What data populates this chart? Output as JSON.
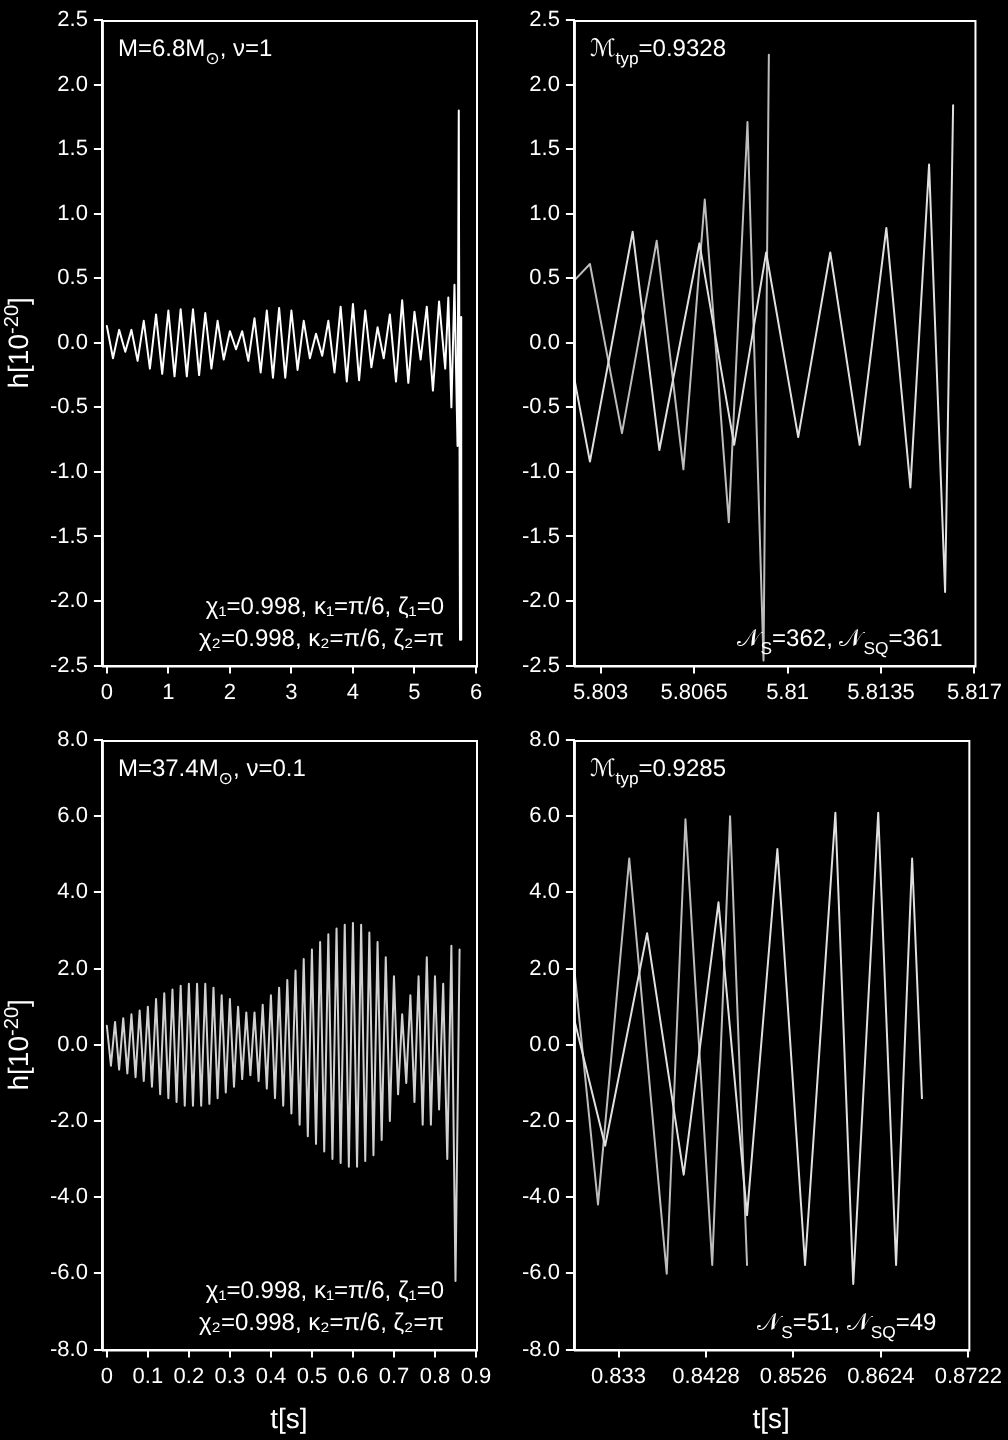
{
  "chart_data": [
    {
      "type": "line",
      "ylabel": "h[10$^{-20}$]",
      "marker": "none",
      "grid": false,
      "xlim": [
        -0.08,
        6
      ],
      "xticks": [
        0,
        1,
        2,
        3,
        4,
        5,
        6
      ],
      "ylim": [
        -2.5,
        2.5
      ],
      "yticks": [
        -2.5,
        {
          "value": -2,
          "label": "-2.0"
        },
        -1.5,
        {
          "value": -1,
          "label": "-1.0"
        },
        -0.5,
        {
          "value": 0,
          "label": "0.0"
        },
        0.5,
        {
          "value": 1,
          "label": "1.0"
        },
        1.5,
        {
          "value": 2,
          "label": "2.0"
        },
        2.5
      ],
      "annotations": [
        "M=6.8M$_{⊙}$, ν=1",
        "χ₁=0.998, κ₁=π/6, ζ₁=0",
        "χ₂=0.998, κ₂=π/6, ζ₂=π"
      ],
      "series": [
        {
          "color": "#ffffff",
          "x": [
            0,
            0.1,
            0.2,
            0.3,
            0.4,
            0.5,
            0.6,
            0.7,
            0.8,
            0.9,
            1.0,
            1.1,
            1.2,
            1.3,
            1.4,
            1.5,
            1.6,
            1.7,
            1.8,
            1.9,
            2.0,
            2.1,
            2.2,
            2.3,
            2.4,
            2.5,
            2.6,
            2.7,
            2.8,
            2.9,
            3.0,
            3.1,
            3.2,
            3.3,
            3.4,
            3.5,
            3.6,
            3.7,
            3.8,
            3.9,
            4.0,
            4.1,
            4.2,
            4.3,
            4.4,
            4.5,
            4.6,
            4.7,
            4.8,
            4.9,
            5.0,
            5.1,
            5.2,
            5.3,
            5.4,
            5.5,
            5.55,
            5.6,
            5.65,
            5.7,
            5.72,
            5.74,
            5.76
          ],
          "values": [
            0.13,
            -0.12,
            0.1,
            -0.07,
            0.1,
            -0.14,
            0.17,
            -0.2,
            0.22,
            -0.24,
            0.25,
            -0.26,
            0.26,
            -0.26,
            0.26,
            -0.25,
            0.23,
            -0.2,
            0.17,
            -0.13,
            0.09,
            -0.05,
            0.09,
            -0.14,
            0.19,
            -0.23,
            0.25,
            -0.27,
            0.27,
            -0.27,
            0.25,
            -0.21,
            0.17,
            -0.12,
            0.07,
            -0.1,
            0.17,
            -0.23,
            0.28,
            -0.3,
            0.3,
            -0.29,
            0.25,
            -0.19,
            0.12,
            -0.12,
            0.22,
            -0.3,
            0.33,
            -0.31,
            0.24,
            -0.13,
            0.28,
            -0.37,
            0.32,
            -0.2,
            0.35,
            -0.5,
            0.45,
            -0.8,
            1.8,
            -2.3,
            0.2
          ]
        }
      ]
    },
    {
      "type": "line",
      "marker": "none",
      "grid": false,
      "xlim": [
        5.802,
        5.817
      ],
      "xticks": [
        5.803,
        5.8065,
        5.81,
        5.8135,
        5.817
      ],
      "ylim": [
        -2.5,
        2.5
      ],
      "yticks": [
        -2.5,
        {
          "value": -2,
          "label": "-2.0"
        },
        -1.5,
        {
          "value": -1,
          "label": "-1.0"
        },
        -0.5,
        {
          "value": 0,
          "label": "0.0"
        },
        0.5,
        {
          "value": 1,
          "label": "1.0"
        },
        1.5,
        {
          "value": 2,
          "label": "2.0"
        },
        2.5
      ],
      "annotations": [
        "ℳ$_{typ}$=0.9328",
        "𝒩$_{S}$=362, 𝒩$_{SQ}$=361"
      ],
      "series": [
        {
          "color": "#e0e0e0",
          "x": [
            5.802,
            5.8026,
            5.8042,
            5.8052,
            5.8067,
            5.808,
            5.8092,
            5.8104,
            5.8116,
            5.8127,
            5.8137,
            5.8146,
            5.8153,
            5.8159,
            5.8162
          ],
          "values": [
            -0.26,
            -0.92,
            0.86,
            -0.83,
            0.77,
            -0.79,
            0.7,
            -0.73,
            0.7,
            -0.79,
            0.89,
            -1.12,
            1.38,
            -1.93,
            1.84
          ]
        },
        {
          "color": "#bdbdbd",
          "x": [
            5.802,
            5.8026,
            5.8038,
            5.8051,
            5.8061,
            5.8069,
            5.8078,
            5.8085,
            5.8091,
            5.8093
          ],
          "values": [
            0.48,
            0.61,
            -0.7,
            0.79,
            -0.98,
            1.11,
            -1.39,
            1.71,
            -2.46,
            2.23
          ]
        }
      ]
    },
    {
      "type": "line",
      "xlabel": "t[s]",
      "ylabel": "h[10$^{-20}$]",
      "marker": "none",
      "grid": false,
      "xlim": [
        -0.012,
        0.9
      ],
      "xticks": [
        0,
        0.1,
        0.2,
        0.3,
        0.4,
        0.5,
        0.6,
        0.7,
        0.8,
        0.9
      ],
      "ylim": [
        -8,
        8
      ],
      "yticks": [
        {
          "value": -8,
          "label": "-8.0"
        },
        {
          "value": -6,
          "label": "-6.0"
        },
        {
          "value": -4,
          "label": "-4.0"
        },
        {
          "value": -2,
          "label": "-2.0"
        },
        {
          "value": 0,
          "label": "0.0"
        },
        {
          "value": 2,
          "label": "2.0"
        },
        {
          "value": 4,
          "label": "4.0"
        },
        {
          "value": 6,
          "label": "6.0"
        },
        {
          "value": 8,
          "label": "8.0"
        }
      ],
      "annotations": [
        "M=37.4M$_{⊙}$, ν=0.1",
        "χ₁=0.998, κ₁=π/6, ζ₁=0",
        "χ₂=0.998, κ₂=π/6, ζ₂=π"
      ],
      "series": [
        {
          "color": "#d0d0d0",
          "x": [
            0,
            0.01,
            0.02,
            0.03,
            0.04,
            0.05,
            0.06,
            0.07,
            0.08,
            0.09,
            0.1,
            0.11,
            0.12,
            0.13,
            0.14,
            0.15,
            0.16,
            0.17,
            0.18,
            0.19,
            0.2,
            0.21,
            0.22,
            0.23,
            0.24,
            0.25,
            0.26,
            0.27,
            0.28,
            0.29,
            0.3,
            0.31,
            0.32,
            0.33,
            0.34,
            0.35,
            0.36,
            0.37,
            0.38,
            0.39,
            0.4,
            0.41,
            0.42,
            0.43,
            0.44,
            0.45,
            0.46,
            0.47,
            0.48,
            0.49,
            0.5,
            0.51,
            0.52,
            0.53,
            0.54,
            0.55,
            0.56,
            0.57,
            0.58,
            0.59,
            0.6,
            0.61,
            0.62,
            0.63,
            0.64,
            0.65,
            0.66,
            0.67,
            0.68,
            0.69,
            0.7,
            0.71,
            0.72,
            0.73,
            0.74,
            0.75,
            0.76,
            0.77,
            0.78,
            0.79,
            0.8,
            0.81,
            0.82,
            0.83,
            0.84,
            0.85,
            0.86
          ],
          "values": [
            0.5,
            -0.55,
            0.6,
            -0.65,
            0.7,
            -0.75,
            0.8,
            -0.85,
            0.9,
            -0.95,
            1.0,
            -1.1,
            1.2,
            -1.3,
            1.35,
            -1.4,
            1.45,
            -1.5,
            1.55,
            -1.6,
            1.6,
            -1.6,
            1.6,
            -1.6,
            1.6,
            -1.55,
            1.5,
            -1.4,
            1.3,
            -1.25,
            1.2,
            -1.1,
            1.0,
            -0.9,
            0.85,
            -0.8,
            0.85,
            -0.95,
            1.05,
            -1.15,
            1.3,
            -1.4,
            1.5,
            -1.6,
            1.7,
            -1.8,
            1.95,
            -2.1,
            2.25,
            -2.4,
            2.5,
            -2.6,
            2.7,
            -2.8,
            2.9,
            -3.0,
            3.05,
            -3.1,
            3.15,
            -3.2,
            3.2,
            -3.2,
            3.15,
            -3.05,
            2.95,
            -2.9,
            2.7,
            -2.5,
            2.3,
            -2.0,
            1.8,
            -1.3,
            0.8,
            -1.0,
            1.3,
            -1.5,
            1.8,
            -2.1,
            2.3,
            -2.1,
            1.8,
            -1.7,
            1.6,
            -3.0,
            2.6,
            -6.2,
            2.5
          ]
        }
      ]
    },
    {
      "type": "line",
      "xlabel": "t[s]",
      "marker": "none",
      "grid": false,
      "xlim": [
        0.828,
        0.8722
      ],
      "xticks": [
        0.833,
        0.8428,
        0.8526,
        0.8624,
        0.8722
      ],
      "ylim": [
        -8,
        8
      ],
      "yticks": [
        {
          "value": -8,
          "label": "-8.0"
        },
        {
          "value": -6,
          "label": "-6.0"
        },
        {
          "value": -4,
          "label": "-4.0"
        },
        {
          "value": -2,
          "label": "-2.0"
        },
        {
          "value": 0,
          "label": "0.0"
        },
        {
          "value": 2,
          "label": "2.0"
        },
        {
          "value": 4,
          "label": "4.0"
        },
        {
          "value": 6,
          "label": "6.0"
        },
        {
          "value": 8,
          "label": "8.0"
        }
      ],
      "annotations": [
        "ℳ$_{typ}$=0.9285",
        "𝒩$_{S}$=51, 𝒩$_{SQ}$=49"
      ],
      "series": [
        {
          "color": "#e0e0e0",
          "x": [
            0.828,
            0.8315,
            0.8362,
            0.8403,
            0.8442,
            0.8474,
            0.8508,
            0.8539,
            0.8573,
            0.8593,
            0.8621,
            0.8641,
            0.8659,
            0.867
          ],
          "values": [
            0.7,
            -2.65,
            2.93,
            -3.41,
            3.74,
            -4.47,
            5.14,
            -5.78,
            6.09,
            -6.28,
            6.09,
            -5.78,
            4.89,
            -1.4
          ]
        },
        {
          "color": "#bdbdbd",
          "x": [
            0.828,
            0.8307,
            0.8342,
            0.8384,
            0.8405,
            0.8435,
            0.8455,
            0.8474
          ],
          "values": [
            2.09,
            -4.19,
            4.89,
            -6.01,
            5.92,
            -5.78,
            6.0,
            -5.78
          ]
        }
      ]
    }
  ]
}
